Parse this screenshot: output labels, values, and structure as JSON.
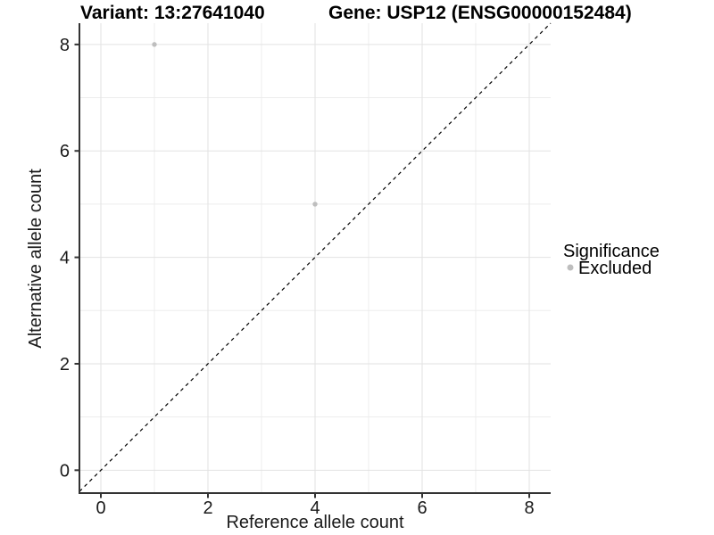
{
  "chart_data": {
    "type": "scatter",
    "title_left": "Variant: 13:27641040",
    "title_right": "Gene: USP12 (ENSG00000152484)",
    "xlabel": "Reference allele count",
    "ylabel": "Alternative allele count",
    "xlim": [
      -0.4,
      8.4
    ],
    "ylim": [
      -0.43,
      8.4
    ],
    "x_ticks": [
      0,
      2,
      4,
      6,
      8
    ],
    "y_ticks": [
      0,
      2,
      4,
      6,
      8
    ],
    "x_minor_ticks": [
      1,
      3,
      5,
      7
    ],
    "y_minor_ticks": [
      1,
      3,
      5,
      7
    ],
    "grid": true,
    "identity_line": {
      "style": "dashed",
      "color": "#000000",
      "from": -0.4,
      "to": 8.4
    },
    "series": [
      {
        "name": "Excluded",
        "color": "#BEBEBE",
        "points": [
          {
            "x": 1,
            "y": 8
          },
          {
            "x": 4,
            "y": 5
          }
        ]
      }
    ],
    "legend": {
      "title": "Significance",
      "position": "right",
      "entries": [
        {
          "label": "Excluded",
          "color": "#BEBEBE"
        }
      ]
    }
  },
  "colors": {
    "grid_major": "#E2E2E2",
    "grid_minor": "#EDEDED",
    "axis_line": "#333333",
    "tick_mark": "#333333",
    "tick_label": "#1A1A1A",
    "point": "#BEBEBE",
    "background": "#FFFFFF"
  }
}
